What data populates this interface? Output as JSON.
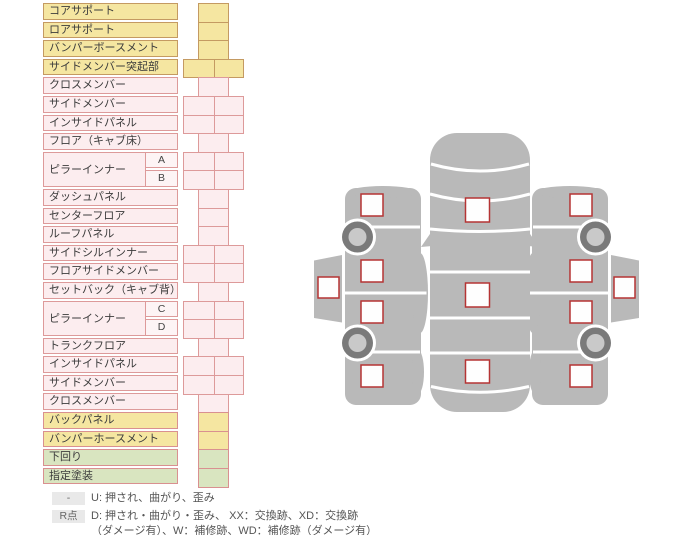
{
  "table": {
    "rows": [
      {
        "label": "コアサポート",
        "color": "yellow",
        "grid": "narrow"
      },
      {
        "label": "ロアサポート",
        "color": "yellow",
        "grid": "narrow"
      },
      {
        "label": "バンパーボースメント",
        "color": "yellow",
        "grid": "narrow"
      },
      {
        "label": "サイドメンバー突起部",
        "color": "yellow",
        "grid": "wide"
      },
      {
        "label": "クロスメンバー",
        "color": "pink",
        "grid": "narrow"
      },
      {
        "label": "サイドメンバー",
        "color": "pink",
        "grid": "wide"
      },
      {
        "label": "インサイドパネル",
        "color": "pink",
        "grid": "wide"
      },
      {
        "label": "フロア（キャブ床）",
        "color": "pink",
        "grid": "narrow"
      },
      {
        "label": "ピラーインナー",
        "color": "pink",
        "grid": "wide",
        "subs": [
          "A",
          "B"
        ]
      },
      {
        "label": "ダッシュパネル",
        "color": "pink",
        "grid": "narrow"
      },
      {
        "label": "センターフロア",
        "color": "pink",
        "grid": "narrow"
      },
      {
        "label": "ルーフパネル",
        "color": "pink",
        "grid": "narrow"
      },
      {
        "label": "サイドシルインナー",
        "color": "pink",
        "grid": "wide"
      },
      {
        "label": "フロアサイドメンバー",
        "color": "pink",
        "grid": "wide"
      },
      {
        "label": "セットバック（キャブ背）",
        "color": "pink",
        "grid": "narrow"
      },
      {
        "label": "ピラーインナー",
        "color": "pink",
        "grid": "wide",
        "subs": [
          "C",
          "D"
        ]
      },
      {
        "label": "トランクフロア",
        "color": "pink",
        "grid": "narrow"
      },
      {
        "label": "インサイドパネル",
        "color": "pink",
        "grid": "wide"
      },
      {
        "label": "サイドメンバー",
        "color": "pink",
        "grid": "wide"
      },
      {
        "label": "クロスメンバー",
        "color": "pink",
        "grid": "narrow"
      },
      {
        "label": "バックパネル",
        "color": "yellow2",
        "grid": "narrow"
      },
      {
        "label": "バンパーホースメント",
        "color": "yellow2",
        "grid": "narrow"
      },
      {
        "label": "下回り",
        "color": "green",
        "grid": "narrow"
      },
      {
        "label": "指定塗装",
        "color": "green",
        "grid": "narrow"
      }
    ]
  },
  "legend": {
    "rows": [
      {
        "badge": "-",
        "text": "U: 押され、曲がり、歪み"
      },
      {
        "badge": "R点",
        "text": "D: 押され・曲がり・歪み、 XX：交換跡、XD：交換跡",
        "text2": "（ダメージ有）、W：補修跡、WD：補修跡（ダメージ有）"
      }
    ]
  },
  "diagram": {
    "views": [
      "left-side-car",
      "top-view-car",
      "right-side-car"
    ],
    "marker_slots": {
      "left-side-car": 5,
      "top-view-car": 3,
      "right-side-car": 5
    }
  },
  "colors": {
    "yellow_fill": "#f5e6a1",
    "yellow_border": "#c49a62",
    "pink_fill": "#fcedef",
    "pink_border": "#dd9a9a",
    "pink_sub_fill": "#fdf4f5",
    "green_fill": "#d9e5c0",
    "salmon_border": "#d99090",
    "car_body": "#b9b9b9",
    "wheel_ring": "#7a7a7a",
    "wheel_hub": "#c9c9c9",
    "marker_fill": "#fefefe",
    "marker_border": "#b53434",
    "legend_badge_bg": "#e9e9e9"
  }
}
